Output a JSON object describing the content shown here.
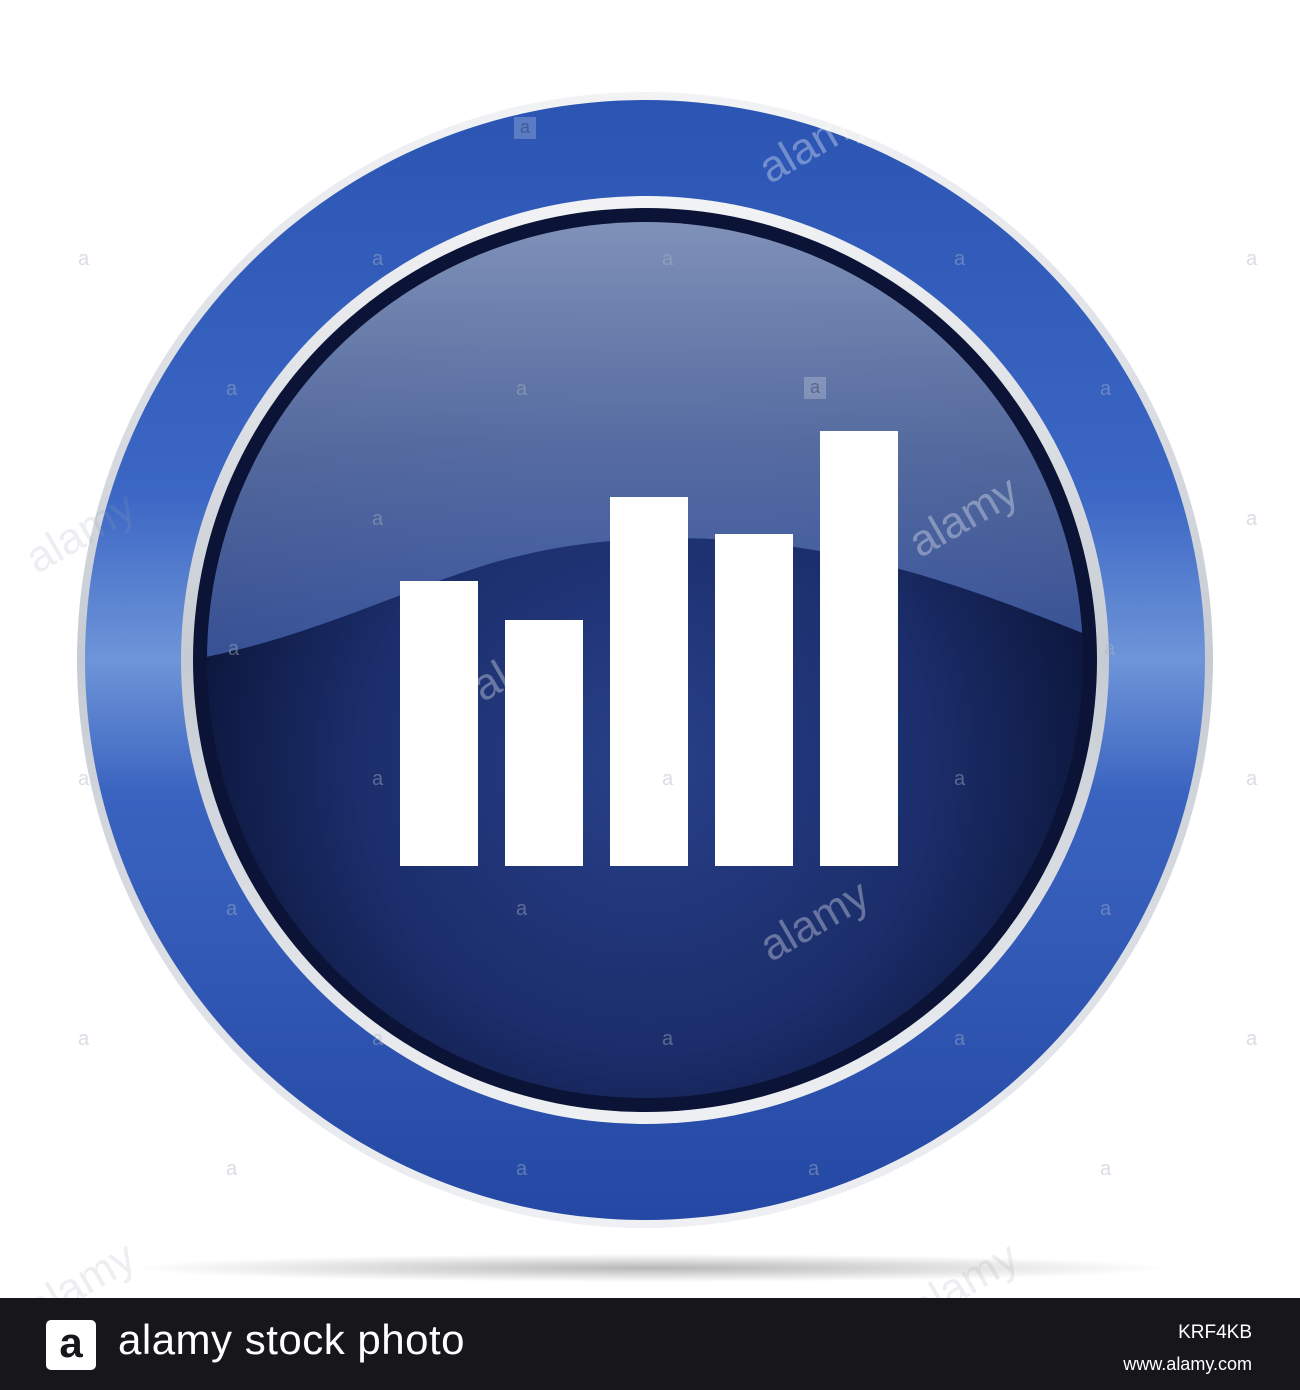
{
  "watermark": {
    "text": "alamy",
    "letter": "a"
  },
  "footer": {
    "logo_letter": "a",
    "title": "alamy stock photo",
    "image_id": "KRF4KB",
    "site": "www.alamy.com"
  },
  "icon": {
    "depicts": "bar-chart-icon",
    "bars": [
      0.575,
      0.495,
      0.744,
      0.669,
      0.877
    ],
    "colors": {
      "ring_outer": "#2a4fa8",
      "ring_light": "#6e95d8",
      "chrome": "#d9dde3",
      "face_dark": "#0d1840",
      "face_mid": "#243b82",
      "face_highlight": "#7a8fb8",
      "bars": "#ffffff"
    }
  }
}
